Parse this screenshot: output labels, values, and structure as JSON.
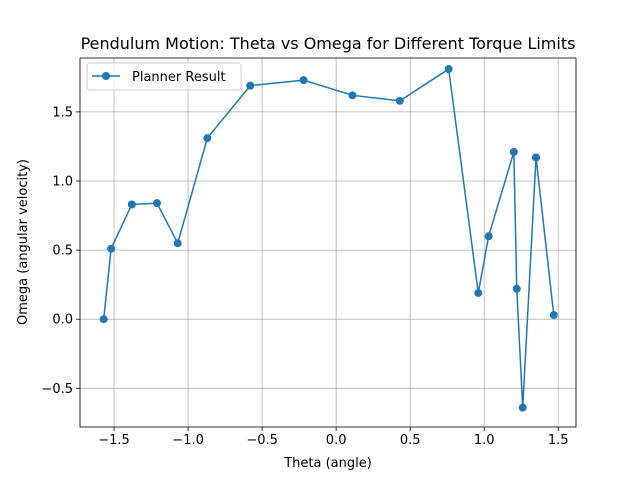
{
  "chart_data": {
    "type": "line",
    "title": "Pendulum Motion: Theta vs Omega for Different Torque Limits",
    "xlabel": "Theta (angle)",
    "ylabel": "Omega (angular velocity)",
    "xlim": [
      -1.73,
      1.62
    ],
    "ylim": [
      -0.78,
      1.89
    ],
    "xticks": [
      -1.5,
      -1.0,
      -0.5,
      0.0,
      0.5,
      1.0,
      1.5
    ],
    "xtick_labels": [
      "−1.5",
      "−1.0",
      "−0.5",
      "0.0",
      "0.5",
      "1.0",
      "1.5"
    ],
    "yticks": [
      -0.5,
      0.0,
      0.5,
      1.0,
      1.5
    ],
    "ytick_labels": [
      "−0.5",
      "0.0",
      "0.5",
      "1.0",
      "1.5"
    ],
    "grid": true,
    "legend_position": "top-left",
    "series": [
      {
        "name": "Planner Result",
        "color": "#1f77b4",
        "marker": "circle",
        "x": [
          -1.57,
          -1.52,
          -1.38,
          -1.21,
          -1.07,
          -0.87,
          -0.58,
          -0.22,
          0.11,
          0.43,
          0.76,
          0.96,
          1.03,
          1.2,
          1.22,
          1.26,
          1.35,
          1.47
        ],
        "y": [
          0.0,
          0.51,
          0.83,
          0.84,
          0.55,
          1.31,
          1.69,
          1.73,
          1.62,
          1.58,
          1.81,
          0.19,
          0.6,
          1.21,
          0.22,
          -0.64,
          1.17,
          0.03
        ]
      }
    ]
  }
}
